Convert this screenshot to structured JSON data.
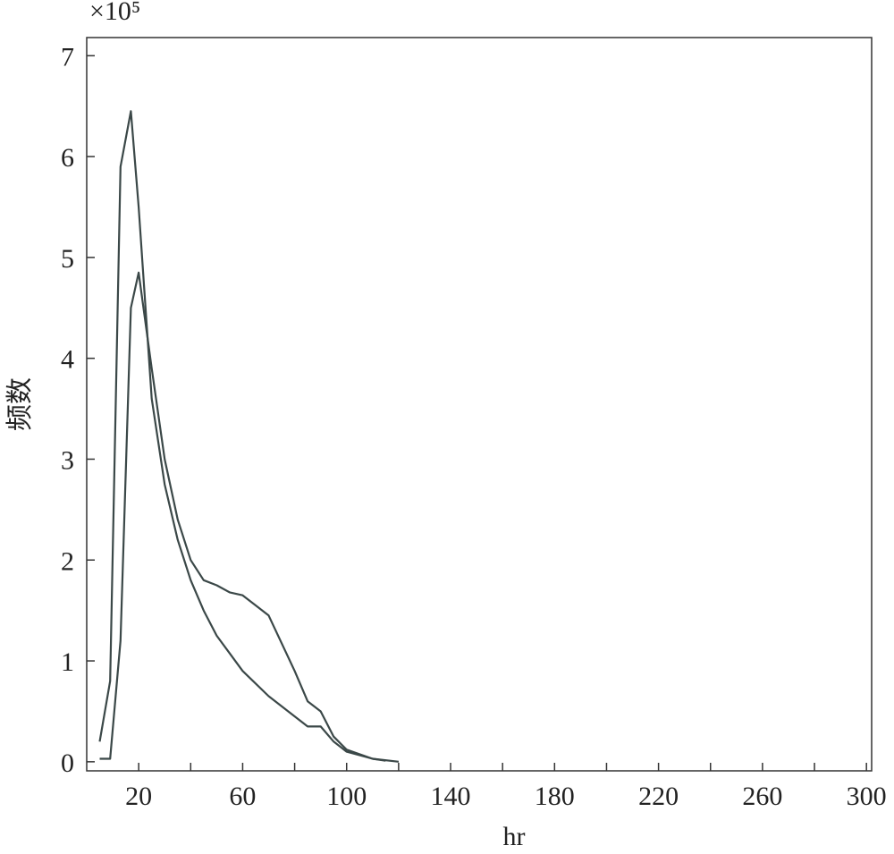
{
  "chart_data": {
    "type": "line",
    "y_multiplier": "×10⁵",
    "x_label": "hr",
    "y_label": "频数",
    "xlim": [
      0,
      302
    ],
    "ylim": [
      -0.09,
      7.18
    ],
    "xticks": [
      20,
      60,
      100,
      140,
      180,
      220,
      260,
      300
    ],
    "xminor_ticks": [
      40,
      80,
      120,
      160,
      200,
      240,
      280
    ],
    "yticks": [
      0,
      1,
      2,
      3,
      4,
      5,
      6,
      7
    ],
    "series": [
      {
        "color": "#3b4848",
        "x": [
          5,
          9,
          13,
          17,
          20,
          25,
          30,
          35,
          40,
          45,
          50,
          60,
          70,
          80,
          85,
          90,
          95,
          100,
          110,
          120
        ],
        "values": [
          0.2,
          0.8,
          5.9,
          6.45,
          5.5,
          3.6,
          2.75,
          2.2,
          1.8,
          1.5,
          1.25,
          0.9,
          0.65,
          0.45,
          0.35,
          0.35,
          0.2,
          0.1,
          0.03,
          0
        ]
      },
      {
        "color": "#3b4848",
        "x": [
          5,
          9,
          13,
          17,
          20,
          25,
          30,
          35,
          40,
          45,
          50,
          55,
          60,
          65,
          70,
          80,
          85,
          90,
          95,
          100,
          110,
          115
        ],
        "values": [
          0.03,
          0.03,
          1.2,
          4.5,
          4.85,
          3.9,
          3.0,
          2.4,
          2.0,
          1.8,
          1.75,
          1.68,
          1.65,
          1.55,
          1.45,
          0.9,
          0.6,
          0.5,
          0.25,
          0.12,
          0.03,
          0.01
        ]
      }
    ]
  }
}
